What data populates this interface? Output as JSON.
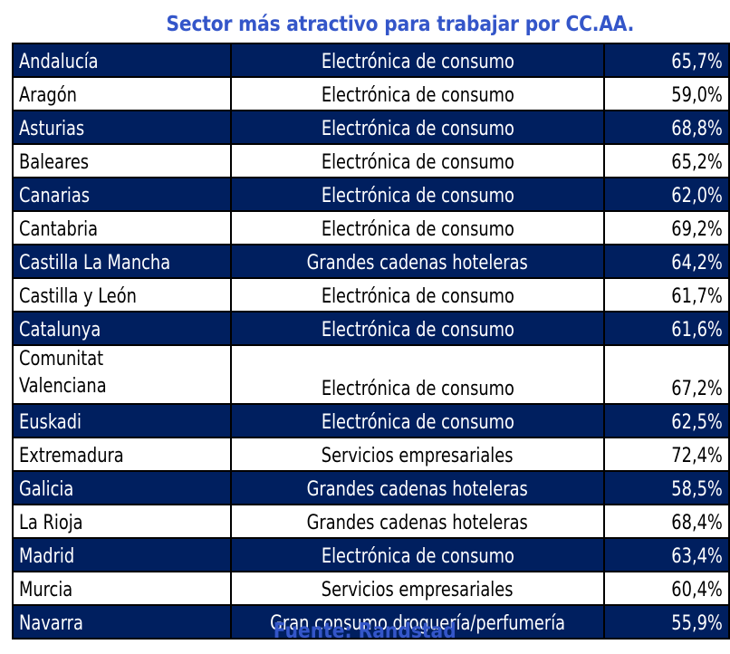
{
  "title": "Sector más atractivo para trabajar por CC.AA.",
  "source": "Fuente: Randstad",
  "colors": {
    "title": "#3456c9",
    "dark_row_bg": "#001f5f",
    "dark_row_text": "#ffffff",
    "light_row_bg": "#ffffff",
    "light_row_text": "#000000",
    "border": "#000000"
  },
  "rows": [
    {
      "region": "Andalucía",
      "sector": "Electrónica de consumo",
      "value": "65,7%"
    },
    {
      "region": "Aragón",
      "sector": "Electrónica de consumo",
      "value": "59,0%"
    },
    {
      "region": "Asturias",
      "sector": "Electrónica de consumo",
      "value": "68,8%"
    },
    {
      "region": "Baleares",
      "sector": "Electrónica de consumo",
      "value": "65,2%"
    },
    {
      "region": "Canarias",
      "sector": "Electrónica de consumo",
      "value": "62,0%"
    },
    {
      "region": "Cantabria",
      "sector": "Electrónica de consumo",
      "value": "69,2%"
    },
    {
      "region": "Castilla La Mancha",
      "sector": "Grandes cadenas hoteleras",
      "value": "64,2%"
    },
    {
      "region": "Castilla y León",
      "sector": "Electrónica de consumo",
      "value": "61,7%"
    },
    {
      "region": "Catalunya",
      "sector": "Electrónica de consumo",
      "value": "61,6%"
    },
    {
      "region": "Comunitat Valenciana",
      "sector": "Electrónica de consumo",
      "value": "67,2%"
    },
    {
      "region": "Euskadi",
      "sector": "Electrónica de consumo",
      "value": "62,5%"
    },
    {
      "region": "Extremadura",
      "sector": "Servicios empresariales",
      "value": "72,4%"
    },
    {
      "region": "Galicia",
      "sector": "Grandes cadenas hoteleras",
      "value": "58,5%"
    },
    {
      "region": "La Rioja",
      "sector": "Grandes cadenas hoteleras",
      "value": "68,4%"
    },
    {
      "region": "Madrid",
      "sector": "Electrónica de consumo",
      "value": "63,4%"
    },
    {
      "region": "Murcia",
      "sector": "Servicios empresariales",
      "value": "60,4%"
    },
    {
      "region": "Navarra",
      "sector": "Gran consumo droguería/perfumería",
      "value": "55,9%"
    }
  ]
}
